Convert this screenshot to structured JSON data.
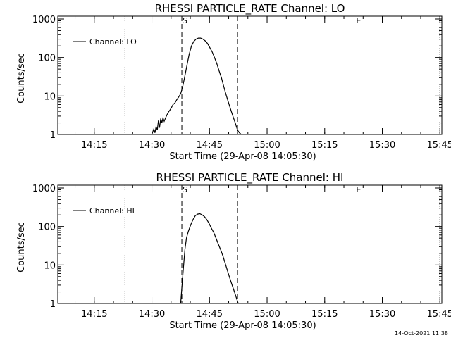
{
  "timestamp": "14-Oct-2021 11:38",
  "chart_data": [
    {
      "type": "line",
      "title": "RHESSI PARTICLE_RATE Channel: LO",
      "xlabel": "Start Time (29-Apr-08 14:05:30)",
      "ylabel": "Counts/sec",
      "x_unit": "minutes after 14:05:30",
      "xlim": [
        0,
        100
      ],
      "ylim": [
        1,
        1000
      ],
      "yscale": "log",
      "x_ticks": [
        {
          "value": 9.5,
          "label": "14:15"
        },
        {
          "value": 24.5,
          "label": "14:30"
        },
        {
          "value": 39.5,
          "label": "14:45"
        },
        {
          "value": 54.5,
          "label": "15:00"
        },
        {
          "value": 69.5,
          "label": "15:15"
        },
        {
          "value": 84.5,
          "label": "15:30"
        },
        {
          "value": 99.5,
          "label": "15:45"
        }
      ],
      "y_ticks": [
        {
          "value": 1,
          "label": "1"
        },
        {
          "value": 10,
          "label": "10"
        },
        {
          "value": 100,
          "label": "100"
        },
        {
          "value": 1000,
          "label": "1000"
        }
      ],
      "vlines_dotted": [
        17.5,
        99.5
      ],
      "vlines_dashed": [
        32.3,
        46.8
      ],
      "markers": [
        {
          "x": 32.3,
          "label": "S"
        },
        {
          "x": 77.5,
          "label": "E"
        }
      ],
      "legend": "Channel: LO",
      "series": [
        {
          "name": "Channel: LO",
          "x": [
            24.5,
            25.0,
            25.3,
            25.6,
            25.9,
            26.2,
            26.5,
            26.8,
            27.1,
            27.4,
            27.7,
            28.0,
            28.4,
            28.8,
            29.2,
            29.6,
            30.0,
            30.5,
            31.0,
            31.5,
            32.0,
            32.5,
            33.0,
            33.6,
            34.2,
            34.8,
            35.4,
            36.0,
            36.6,
            37.2,
            37.8,
            38.4,
            39.0,
            39.6,
            40.2,
            40.8,
            41.4,
            42.0,
            42.6,
            43.2,
            43.8,
            44.4,
            45.0,
            45.6,
            46.2,
            46.8,
            47.3,
            47.8
          ],
          "values": [
            1.0,
            1.4,
            1.1,
            1.6,
            1.3,
            2.3,
            1.5,
            2.6,
            2.0,
            2.7,
            2.2,
            2.6,
            3.2,
            3.8,
            4.3,
            5.0,
            6.0,
            6.6,
            8.0,
            9.5,
            11.5,
            17,
            30,
            60,
            120,
            200,
            260,
            300,
            320,
            320,
            300,
            270,
            230,
            180,
            140,
            100,
            70,
            45,
            30,
            18,
            11,
            7,
            4.5,
            3,
            2,
            1.3,
            1.1,
            1.0
          ]
        }
      ]
    },
    {
      "type": "line",
      "title": "RHESSI PARTICLE_RATE Channel: HI",
      "xlabel": "Start Time (29-Apr-08 14:05:30)",
      "ylabel": "Counts/sec",
      "x_unit": "minutes after 14:05:30",
      "xlim": [
        0,
        100
      ],
      "ylim": [
        1,
        1000
      ],
      "yscale": "log",
      "x_ticks": [
        {
          "value": 9.5,
          "label": "14:15"
        },
        {
          "value": 24.5,
          "label": "14:30"
        },
        {
          "value": 39.5,
          "label": "14:45"
        },
        {
          "value": 54.5,
          "label": "15:00"
        },
        {
          "value": 69.5,
          "label": "15:15"
        },
        {
          "value": 84.5,
          "label": "15:30"
        },
        {
          "value": 99.5,
          "label": "15:45"
        }
      ],
      "y_ticks": [
        {
          "value": 1,
          "label": "1"
        },
        {
          "value": 10,
          "label": "10"
        },
        {
          "value": 100,
          "label": "100"
        },
        {
          "value": 1000,
          "label": "1000"
        }
      ],
      "vlines_dotted": [
        17.5,
        99.5
      ],
      "vlines_dashed": [
        32.3,
        46.8
      ],
      "markers": [
        {
          "x": 32.3,
          "label": "S"
        },
        {
          "x": 77.5,
          "label": "E"
        }
      ],
      "legend": "Channel: HI",
      "series": [
        {
          "name": "Channel: HI",
          "x": [
            32.0,
            32.3,
            32.7,
            33.1,
            33.5,
            34.0,
            34.6,
            35.2,
            35.8,
            36.4,
            37.0,
            37.6,
            38.2,
            38.8,
            39.4,
            40.0,
            40.6,
            41.2,
            41.8,
            42.4,
            43.0,
            43.6,
            44.2,
            44.8,
            45.4,
            46.0,
            46.6,
            47.0
          ],
          "values": [
            1.0,
            2.5,
            8,
            25,
            50,
            75,
            110,
            150,
            190,
            210,
            215,
            200,
            180,
            150,
            120,
            90,
            70,
            50,
            35,
            25,
            17,
            11,
            7,
            4.5,
            3,
            2,
            1.3,
            1.0
          ]
        }
      ]
    }
  ]
}
